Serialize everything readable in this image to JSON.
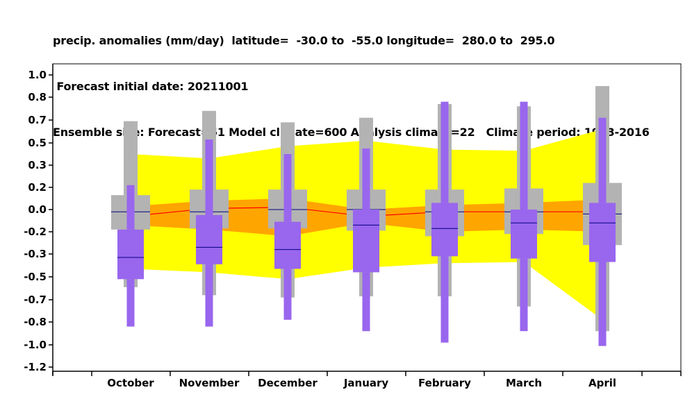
{
  "chart_data": {
    "type": "box",
    "title_lines": [
      "precip. anomalies (mm/day)  latitude=  -30.0 to  -55.0 longitude=  280.0 to  295.0",
      " Forecast initial date: 20211001",
      "Ensemble size: Forecast=51 Model climate=600 Analysis climate=22   Climate period: 1993-2016"
    ],
    "categories": [
      "October",
      "November",
      "December",
      "January",
      "February",
      "March",
      "April"
    ],
    "y_ticks": [
      1.0,
      0.8,
      0.7,
      0.5,
      0.3,
      0.2,
      0.0,
      -0.2,
      -0.3,
      -0.5,
      -0.7,
      -0.8,
      -1.0,
      -1.2
    ],
    "y_tick_labels": [
      "1.0",
      "0.8",
      "0.7",
      "0.5",
      "0.3",
      "0.2",
      "0.0",
      "-0.2",
      "-0.3",
      "-0.5",
      "-0.7",
      "-0.8",
      "-1.0",
      "-1.2"
    ],
    "ylim": [
      -1.2,
      1.0
    ],
    "colors": {
      "climate_outer_band": "#ffff00",
      "climate_inner_band": "#ffa500",
      "climate_median_line": "#ff0000",
      "model_climate_box": "#b3b3b3",
      "forecast_box": "#9966ee",
      "median_marker": "#000080"
    },
    "climate_band_outer": {
      "upper": [
        0.4,
        0.36,
        0.47,
        0.52,
        0.44,
        0.43,
        0.62
      ],
      "lower": [
        -0.43,
        -0.46,
        -0.52,
        -0.42,
        -0.38,
        -0.37,
        -0.79
      ]
    },
    "climate_band_inner": {
      "upper": [
        0.03,
        0.08,
        0.1,
        0.0,
        0.04,
        0.06,
        0.09
      ],
      "lower": [
        -0.14,
        -0.18,
        -0.22,
        -0.12,
        -0.2,
        -0.18,
        -0.2
      ]
    },
    "climate_median": [
      -0.06,
      0.01,
      0.02,
      -0.06,
      -0.02,
      -0.02,
      -0.02
    ],
    "model_climate": {
      "whisker_low": [
        -0.59,
        -0.66,
        -0.68,
        -0.67,
        -0.67,
        -0.73,
        -0.88
      ],
      "q1": [
        -0.18,
        -0.17,
        -0.17,
        -0.19,
        -0.22,
        -0.21,
        -0.26
      ],
      "median": [
        -0.02,
        -0.02,
        0.0,
        0.0,
        -0.02,
        -0.02,
        -0.04
      ],
      "q3": [
        0.13,
        0.18,
        0.18,
        0.18,
        0.18,
        0.19,
        0.22
      ],
      "whisker_high": [
        0.69,
        0.74,
        0.68,
        0.71,
        0.77,
        0.76,
        0.9
      ]
    },
    "forecast": {
      "whisker_low": [
        -0.84,
        -0.84,
        -0.79,
        -0.88,
        -0.98,
        -0.88,
        -1.01
      ],
      "q1": [
        -0.52,
        -0.39,
        -0.43,
        -0.46,
        -0.32,
        -0.34,
        -0.37
      ],
      "median": [
        -0.33,
        -0.27,
        -0.28,
        -0.14,
        -0.17,
        -0.12,
        -0.12
      ],
      "q3": [
        -0.18,
        -0.05,
        -0.11,
        0.0,
        0.06,
        0.0,
        0.06
      ],
      "whisker_high": [
        0.21,
        0.53,
        0.4,
        0.45,
        0.78,
        0.78,
        0.71
      ]
    }
  }
}
